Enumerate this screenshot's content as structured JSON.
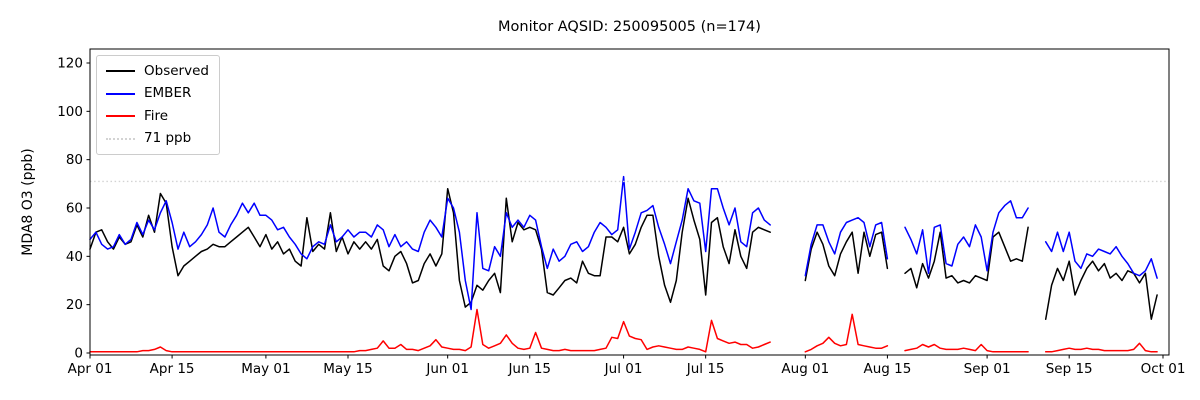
{
  "figure": {
    "title": "Monitor AQSID: 250095005 (n=174)",
    "ylabel": "MDA8 O3 (ppb)",
    "background": "#ffffff",
    "axis_color": "#000000"
  },
  "legend": {
    "entries": [
      {
        "label": "Observed",
        "color": "#000000",
        "style": "solid"
      },
      {
        "label": "EMBER",
        "color": "#0000ff",
        "style": "solid"
      },
      {
        "label": "Fire",
        "color": "#ff0000",
        "style": "solid"
      },
      {
        "label": "71 ppb",
        "color": "#d3d3d3",
        "style": "dotted"
      }
    ]
  },
  "chart_data": {
    "type": "line",
    "title": "Monitor AQSID: 250095005 (n=174)",
    "xlabel": "",
    "ylabel": "MDA8 O3 (ppb)",
    "n_points": 174,
    "x_start_label": "Apr 01",
    "x_end_label": "Oct 01",
    "x_unit": "day index from Apr 01",
    "ylim": [
      -1,
      126
    ],
    "yticks": [
      0,
      20,
      40,
      60,
      80,
      100,
      120
    ],
    "xlim_days": [
      0,
      184
    ],
    "xticks": [
      {
        "day": 0,
        "label": "Apr 01"
      },
      {
        "day": 14,
        "label": "Apr 15"
      },
      {
        "day": 30,
        "label": "May 01"
      },
      {
        "day": 44,
        "label": "May 15"
      },
      {
        "day": 61,
        "label": "Jun 01"
      },
      {
        "day": 75,
        "label": "Jun 15"
      },
      {
        "day": 91,
        "label": "Jul 01"
      },
      {
        "day": 105,
        "label": "Jul 15"
      },
      {
        "day": 122,
        "label": "Aug 01"
      },
      {
        "day": 136,
        "label": "Aug 15"
      },
      {
        "day": 153,
        "label": "Sep 01"
      },
      {
        "day": 167,
        "label": "Sep 15"
      },
      {
        "day": 183,
        "label": "Oct 01"
      }
    ],
    "threshold": {
      "value": 71,
      "label": "71 ppb",
      "color": "#d3d3d3",
      "style": "dotted"
    },
    "grid": false,
    "legend_position": "upper left",
    "missing_dates": [
      "Jul 27-31",
      "Aug 16-17",
      "Sep 09-10"
    ],
    "series": [
      {
        "name": "Observed",
        "color": "#000000",
        "values": [
          43,
          50,
          51,
          46,
          43,
          48,
          45,
          46,
          53,
          48,
          57,
          50,
          66,
          62,
          44,
          32,
          36,
          38,
          40,
          42,
          43,
          45,
          44,
          44,
          46,
          48,
          50,
          52,
          48,
          44,
          49,
          43,
          46,
          41,
          43,
          38,
          36,
          56,
          42,
          45,
          43,
          58,
          42,
          48,
          41,
          46,
          43,
          46,
          43,
          47,
          36,
          34,
          40,
          42,
          37,
          29,
          30,
          37,
          41,
          36,
          41,
          68,
          58,
          30,
          19,
          21,
          28,
          26,
          30,
          33,
          25,
          64,
          46,
          54,
          51,
          52,
          51,
          43,
          25,
          24,
          27,
          30,
          31,
          29,
          38,
          33,
          32,
          32,
          48,
          48,
          46,
          52,
          41,
          45,
          52,
          57,
          57,
          40,
          28,
          21,
          30,
          50,
          64,
          55,
          47,
          24,
          54,
          56,
          44,
          37,
          51,
          40,
          35,
          50,
          52,
          51,
          50,
          null,
          null,
          null,
          null,
          null,
          30,
          43,
          50,
          45,
          36,
          32,
          41,
          46,
          50,
          33,
          50,
          40,
          49,
          50,
          35,
          null,
          null,
          33,
          35,
          27,
          37,
          31,
          38,
          50,
          31,
          32,
          29,
          30,
          29,
          32,
          31,
          30,
          48,
          50,
          44,
          38,
          39,
          38,
          52,
          null,
          null,
          14,
          28,
          35,
          30,
          38,
          24,
          30,
          35,
          38,
          34,
          37,
          31,
          33,
          30,
          34,
          33,
          29,
          33,
          14,
          24
        ]
      },
      {
        "name": "EMBER",
        "color": "#0000ff",
        "values": [
          47,
          50,
          45,
          43,
          44,
          49,
          45,
          47,
          54,
          49,
          55,
          51,
          58,
          63,
          54,
          43,
          50,
          44,
          46,
          49,
          53,
          60,
          50,
          48,
          53,
          57,
          62,
          58,
          62,
          57,
          57,
          55,
          51,
          52,
          48,
          45,
          41,
          39,
          44,
          46,
          45,
          53,
          46,
          48,
          51,
          48,
          50,
          50,
          48,
          53,
          51,
          44,
          49,
          44,
          46,
          43,
          42,
          50,
          55,
          52,
          48,
          64,
          60,
          50,
          30,
          18,
          58,
          35,
          34,
          44,
          40,
          58,
          52,
          55,
          52,
          57,
          55,
          44,
          35,
          43,
          38,
          40,
          45,
          46,
          42,
          44,
          50,
          54,
          52,
          49,
          51,
          73,
          43,
          50,
          58,
          59,
          61,
          52,
          45,
          37,
          46,
          55,
          68,
          63,
          62,
          42,
          68,
          68,
          60,
          53,
          60,
          46,
          44,
          58,
          60,
          55,
          53,
          null,
          null,
          null,
          null,
          null,
          32,
          45,
          53,
          53,
          46,
          41,
          50,
          54,
          55,
          56,
          54,
          44,
          53,
          54,
          39,
          null,
          null,
          52,
          47,
          41,
          51,
          33,
          52,
          53,
          37,
          36,
          45,
          48,
          44,
          53,
          48,
          34,
          50,
          58,
          61,
          63,
          56,
          56,
          60,
          null,
          null,
          46,
          42,
          50,
          42,
          50,
          38,
          35,
          41,
          40,
          43,
          42,
          41,
          44,
          40,
          37,
          33,
          32,
          34,
          39,
          31
        ]
      },
      {
        "name": "Fire",
        "color": "#ff0000",
        "values": [
          0.5,
          0.5,
          0.5,
          0.5,
          0.5,
          0.5,
          0.5,
          0.5,
          0.5,
          1,
          1,
          1.5,
          2.5,
          1,
          0.5,
          0.5,
          0.5,
          0.5,
          0.5,
          0.5,
          0.5,
          0.5,
          0.5,
          0.5,
          0.5,
          0.5,
          0.5,
          0.5,
          0.5,
          0.5,
          0.5,
          0.5,
          0.5,
          0.5,
          0.5,
          0.5,
          0.5,
          0.5,
          0.5,
          0.5,
          0.5,
          0.5,
          0.5,
          0.5,
          0.5,
          0.5,
          1,
          1,
          1.5,
          2,
          5,
          2,
          2,
          3.5,
          1.5,
          1.5,
          1,
          2,
          3,
          5.5,
          2.5,
          2,
          1.5,
          1.5,
          1,
          2.5,
          18,
          3.5,
          2,
          3,
          4,
          7.5,
          4,
          2,
          1.5,
          2,
          8.5,
          2,
          1.5,
          1,
          1,
          1.5,
          1,
          1,
          1,
          1,
          1,
          1.5,
          2,
          6.5,
          6,
          13,
          7,
          6,
          5.5,
          1.5,
          2.5,
          3,
          2.5,
          2,
          1.5,
          1.5,
          2.5,
          2,
          1.5,
          0.5,
          13.5,
          6,
          5,
          4,
          4.5,
          3.5,
          3.5,
          2,
          2.5,
          3.5,
          4.5,
          null,
          null,
          null,
          null,
          null,
          0.5,
          1.5,
          3,
          4,
          6.5,
          4,
          3,
          3.5,
          16,
          3.5,
          3,
          2.5,
          2,
          2,
          3,
          null,
          null,
          1,
          1.5,
          2,
          3.5,
          2.5,
          3.5,
          2,
          1.5,
          1.5,
          1.5,
          2,
          1.5,
          1,
          3.5,
          1,
          0.5,
          0.5,
          0.5,
          0.5,
          0.5,
          0.5,
          0.5,
          null,
          null,
          0.5,
          0.5,
          1,
          1.5,
          2,
          1.5,
          1.5,
          2,
          1.5,
          1.5,
          1,
          1,
          1,
          1,
          1,
          1.5,
          4,
          1,
          0.5,
          0.5
        ]
      }
    ]
  }
}
